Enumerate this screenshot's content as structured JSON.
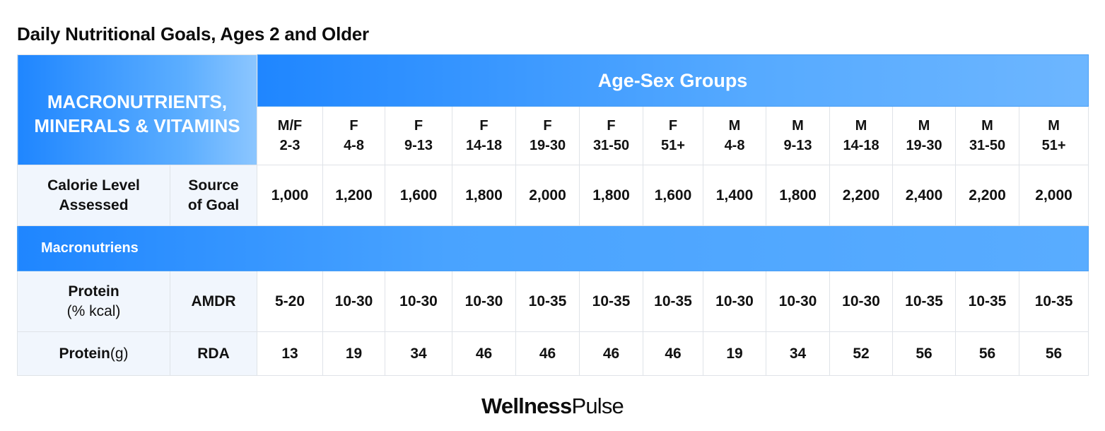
{
  "title": "Daily Nutritional Goals, Ages 2 and Older",
  "corner_line1": "MACRONUTRIENTS,",
  "corner_line2": "MINERALS & VITAMINS",
  "age_sex_header": "Age-Sex Groups",
  "groups": [
    {
      "sex": "M/F",
      "age": "2-3"
    },
    {
      "sex": "F",
      "age": "4-8"
    },
    {
      "sex": "F",
      "age": "9-13"
    },
    {
      "sex": "F",
      "age": "14-18"
    },
    {
      "sex": "F",
      "age": "19-30"
    },
    {
      "sex": "F",
      "age": "31-50"
    },
    {
      "sex": "F",
      "age": "51+"
    },
    {
      "sex": "M",
      "age": "4-8"
    },
    {
      "sex": "M",
      "age": "9-13"
    },
    {
      "sex": "M",
      "age": "14-18"
    },
    {
      "sex": "M",
      "age": "19-30"
    },
    {
      "sex": "M",
      "age": "31-50"
    },
    {
      "sex": "M",
      "age": "51+"
    }
  ],
  "calorie_row": {
    "label_line1": "Calorie Level",
    "label_line2": "Assessed",
    "source_line1": "Source",
    "source_line2": "of Goal",
    "values": [
      "1,000",
      "1,200",
      "1,600",
      "1,800",
      "2,000",
      "1,800",
      "1,600",
      "1,400",
      "1,800",
      "2,200",
      "2,400",
      "2,200",
      "2,000"
    ]
  },
  "section_label": "Macronutriens",
  "protein_pct_row": {
    "label": "Protein",
    "sublabel": "(% kcal)",
    "source": "AMDR",
    "values": [
      "5-20",
      "10-30",
      "10-30",
      "10-30",
      "10-35",
      "10-35",
      "10-35",
      "10-30",
      "10-30",
      "10-30",
      "10-35",
      "10-35",
      "10-35"
    ]
  },
  "protein_g_row": {
    "label": "Protein",
    "unit": "(g)",
    "source": "RDA",
    "values": [
      "13",
      "19",
      "34",
      "46",
      "46",
      "46",
      "46",
      "19",
      "34",
      "52",
      "56",
      "56",
      "56"
    ]
  },
  "brand": {
    "part1": "Wellness",
    "part2": "Pulse"
  },
  "colors": {
    "accent_blue": "#1f86ff",
    "light_blue": "#8cc6ff",
    "label_bg": "#f1f6fd",
    "border": "#dfe3e8"
  }
}
